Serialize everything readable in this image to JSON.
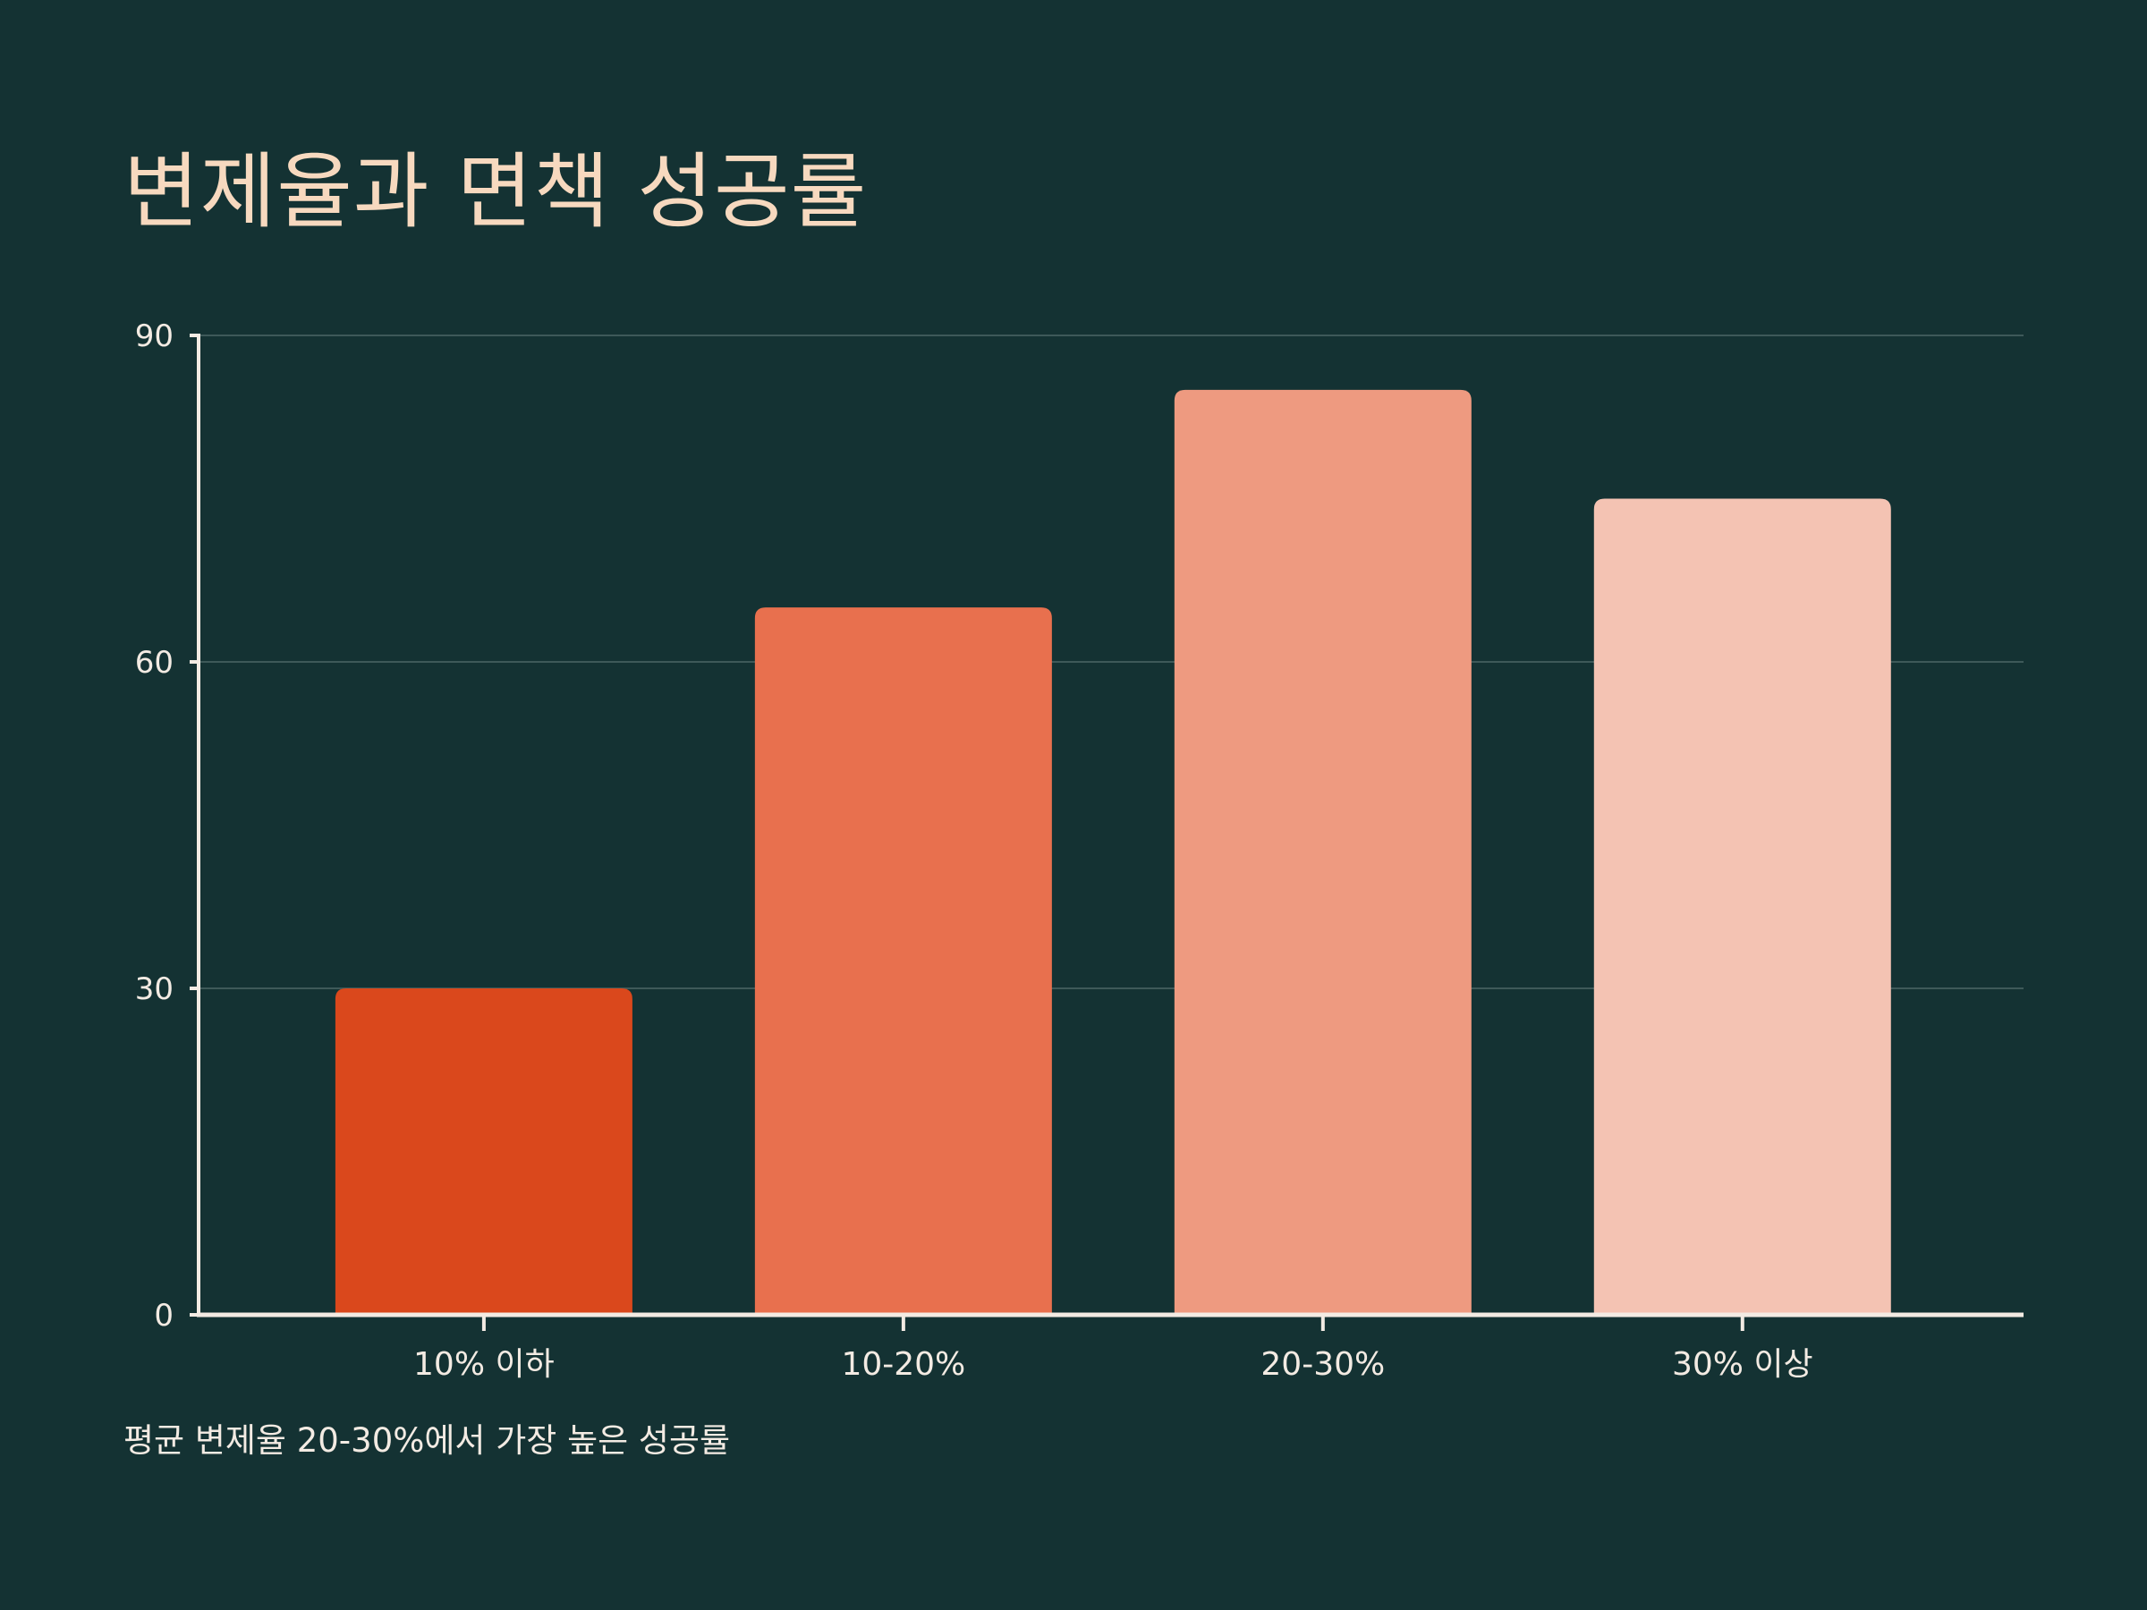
{
  "title": "변제율과 면책 성공률",
  "note": "평균 변제율 20-30%에서 가장 높은 성공률",
  "colors": {
    "background": "#143233",
    "title": "#F7D9BF",
    "text": "#F3EBE3",
    "axis": "#F3EBE3",
    "grid": "#3E5959"
  },
  "chart_data": {
    "type": "bar",
    "title": "변제율과 면책 성공률",
    "xlabel": "",
    "ylabel": "",
    "categories": [
      "10% 이하",
      "10-20%",
      "20-30%",
      "30% 이상"
    ],
    "values": [
      30,
      65,
      85,
      75
    ],
    "bar_colors": [
      "#DA481C",
      "#E8704E",
      "#EE9A80",
      "#F4C3B3"
    ],
    "ylim": [
      0,
      90
    ],
    "yticks": [
      0,
      30,
      60,
      90
    ],
    "grid": true,
    "legend": false
  }
}
